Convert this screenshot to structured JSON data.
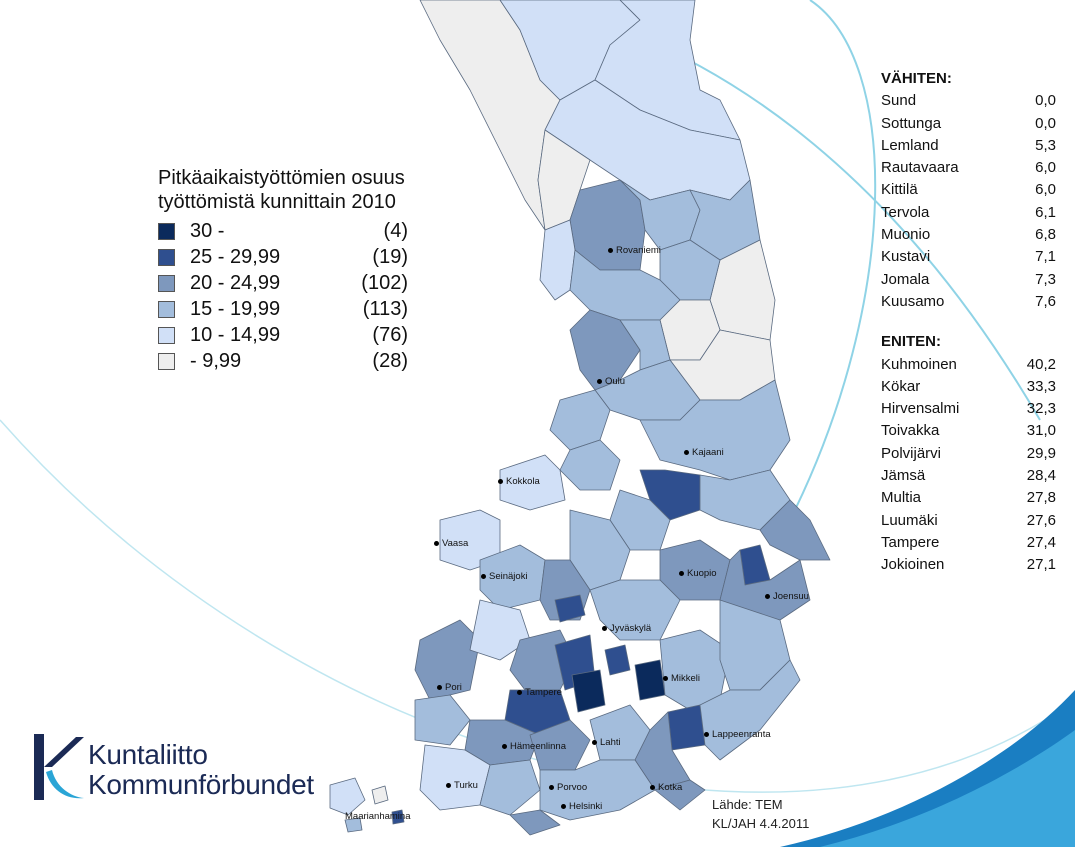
{
  "legend": {
    "title_line1": "Pitkäaikaistyöttömien osuus",
    "title_line2": "työttömistä kunnittain 2010",
    "classes": [
      {
        "label": "30 -",
        "count": "(4)",
        "color": "#0b2a5c"
      },
      {
        "label": "25 - 29,99",
        "count": "(19)",
        "color": "#2f4f8f"
      },
      {
        "label": "20 - 24,99",
        "count": "(102)",
        "color": "#7e98bd"
      },
      {
        "label": "15 - 19,99",
        "count": "(113)",
        "color": "#a3bddc"
      },
      {
        "label": "10 - 14,99",
        "count": "(76)",
        "color": "#d1e0f7"
      },
      {
        "label": "- 9,99",
        "count": "(28)",
        "color": "#eeeeee"
      }
    ]
  },
  "lowest": {
    "heading": "VÄHITEN:",
    "items": [
      {
        "name": "Sund",
        "value": "0,0"
      },
      {
        "name": "Sottunga",
        "value": "0,0"
      },
      {
        "name": "Lemland",
        "value": "5,3"
      },
      {
        "name": "Rautavaara",
        "value": "6,0"
      },
      {
        "name": "Kittilä",
        "value": "6,0"
      },
      {
        "name": "Tervola",
        "value": "6,1"
      },
      {
        "name": "Muonio",
        "value": "6,8"
      },
      {
        "name": "Kustavi",
        "value": "7,1"
      },
      {
        "name": "Jomala",
        "value": "7,3"
      },
      {
        "name": "Kuusamo",
        "value": "7,6"
      }
    ]
  },
  "highest": {
    "heading": "ENITEN:",
    "items": [
      {
        "name": "Kuhmoinen",
        "value": "40,2"
      },
      {
        "name": "Kökar",
        "value": "33,3"
      },
      {
        "name": "Hirvensalmi",
        "value": "32,3"
      },
      {
        "name": "Toivakka",
        "value": "31,0"
      },
      {
        "name": "Polvijärvi",
        "value": "29,9"
      },
      {
        "name": "Jämsä",
        "value": "28,4"
      },
      {
        "name": "Multia",
        "value": "27,8"
      },
      {
        "name": "Luumäki",
        "value": "27,6"
      },
      {
        "name": "Tampere",
        "value": "27,4"
      },
      {
        "name": "Jokioinen",
        "value": "27,1"
      }
    ]
  },
  "cities": [
    "Rovaniemi",
    "Oulu",
    "Kajaani",
    "Kokkola",
    "Vaasa",
    "Seinäjoki",
    "Kuopio",
    "Joensuu",
    "Jyväskylä",
    "Pori",
    "Tampere",
    "Mikkeli",
    "Lappeenranta",
    "Hämeenlinna",
    "Lahti",
    "Turku",
    "Porvoo",
    "Kotka",
    "Helsinki",
    "Maarianhamina"
  ],
  "source": {
    "line1": "Lähde: TEM",
    "line2": "KL/JAH 4.4.2011"
  },
  "logo": {
    "line1": "Kuntaliitto",
    "line2": "Kommunförbundet"
  }
}
